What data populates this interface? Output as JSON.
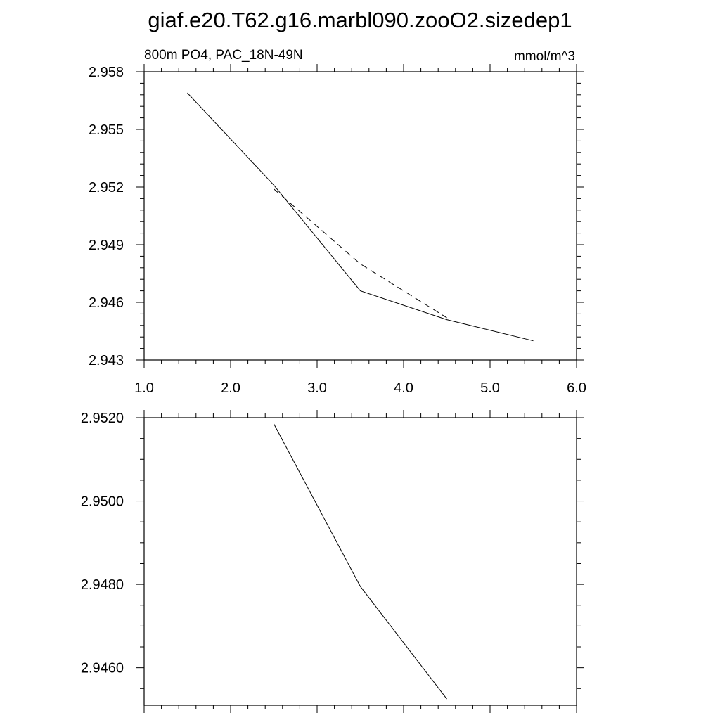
{
  "title": "giaf.e20.T62.g16.marbl090.zooO2.sizedep1",
  "chart_data": [
    {
      "type": "line",
      "left_label": "800m PO4, PAC_18N-49N",
      "right_label": "mmol/m^3",
      "xlim": [
        1.0,
        6.0
      ],
      "ylim": [
        2.943,
        2.958
      ],
      "x_tick_labels": [
        "1.0",
        "2.0",
        "3.0",
        "4.0",
        "5.0",
        "6.0"
      ],
      "y_tick_labels": [
        "2.943",
        "2.946",
        "2.949",
        "2.952",
        "2.955",
        "2.958"
      ],
      "series": [
        {
          "style": "solid",
          "color": "#000000",
          "x": [
            1.5,
            2.5,
            3.5,
            4.5,
            5.5
          ],
          "y": [
            2.9569,
            2.9521,
            2.9466,
            2.9451,
            2.944
          ]
        },
        {
          "style": "dashed",
          "color": "#000000",
          "x": [
            2.5,
            3.5,
            4.5
          ],
          "y": [
            2.9519,
            2.948,
            2.9452
          ]
        }
      ]
    },
    {
      "type": "line",
      "xlim": [
        1.0,
        6.0
      ],
      "ylim": [
        2.9451,
        2.952
      ],
      "x_tick_labels": [],
      "y_tick_labels": [
        "2.9520",
        "2.9500",
        "2.9480",
        "2.9460"
      ],
      "series": [
        {
          "style": "solid",
          "color": "#000000",
          "x": [
            2.5,
            3.5,
            4.5
          ],
          "y": [
            2.95185,
            2.94795,
            2.94525
          ]
        }
      ]
    }
  ]
}
